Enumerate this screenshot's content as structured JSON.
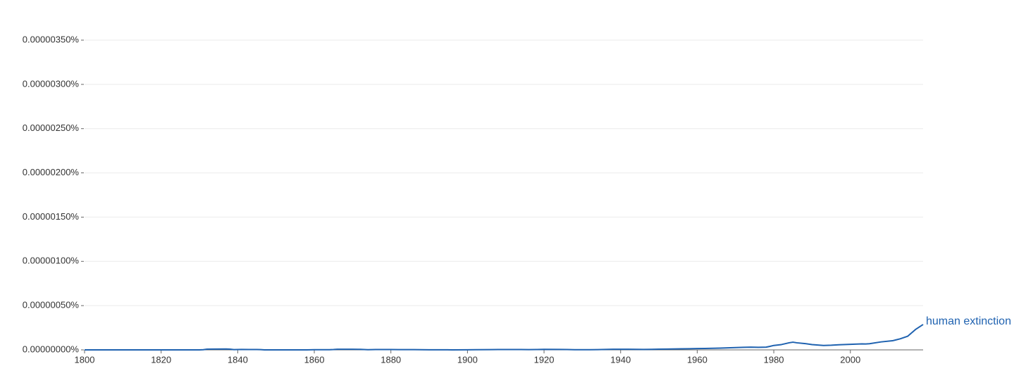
{
  "chart_data": {
    "type": "line",
    "x": [
      1800,
      1810,
      1820,
      1830,
      1831,
      1832,
      1834,
      1837,
      1838,
      1839,
      1841,
      1843,
      1845,
      1846,
      1847,
      1858,
      1860,
      1864,
      1865,
      1866,
      1870,
      1872,
      1874,
      1876,
      1880,
      1882,
      1886,
      1890,
      1896,
      1900,
      1902,
      1906,
      1908,
      1910,
      1914,
      1916,
      1918,
      1920,
      1924,
      1926,
      1928,
      1932,
      1934,
      1936,
      1938,
      1942,
      1946,
      1948,
      1950,
      1952,
      1956,
      1958,
      1960,
      1962,
      1964,
      1966,
      1970,
      1972,
      1974,
      1976,
      1978,
      1979,
      1980,
      1982,
      1984,
      1985,
      1986,
      1988,
      1990,
      1993,
      1995,
      1997,
      2000,
      2003,
      2004,
      2005,
      2008,
      2011,
      2013,
      2015,
      2017,
      2019
    ],
    "series": [
      {
        "name": "human extinction",
        "color": "#1f62b0",
        "values": [
          0,
          0,
          0,
          0,
          2e-09,
          8e-09,
          9e-09,
          1e-08,
          8e-09,
          3e-09,
          5e-09,
          4e-09,
          4e-09,
          3e-09,
          0,
          0,
          2e-09,
          2e-09,
          4e-09,
          7e-09,
          7e-09,
          6e-09,
          2e-09,
          4e-09,
          4e-09,
          3e-09,
          3e-09,
          1e-09,
          5e-10,
          1e-09,
          2e-09,
          3e-09,
          4e-09,
          4e-09,
          4e-09,
          3e-09,
          4e-09,
          6e-09,
          5e-09,
          4e-09,
          2e-09,
          2e-09,
          3e-09,
          5e-09,
          7e-09,
          7e-09,
          5e-09,
          6e-09,
          8e-09,
          9e-09,
          1.2e-08,
          1.3e-08,
          1.5e-08,
          1.6e-08,
          1.8e-08,
          2e-08,
          2.6e-08,
          2.9e-08,
          3.1e-08,
          2.9e-08,
          3.1e-08,
          4e-08,
          5e-08,
          6e-08,
          8e-08,
          8.7e-08,
          8e-08,
          7.2e-08,
          6e-08,
          5e-08,
          5.3e-08,
          5.8e-08,
          6.3e-08,
          6.8e-08,
          6.7e-08,
          7e-08,
          9e-08,
          1.03e-07,
          1.25e-07,
          1.55e-07,
          2.3e-07,
          2.87e-07
        ]
      }
    ],
    "xlim": [
      1800,
      2019
    ],
    "xticks": [
      1800,
      1820,
      1840,
      1860,
      1880,
      1900,
      1920,
      1940,
      1960,
      1980,
      2000
    ],
    "ylim": [
      0,
      3.5e-06
    ],
    "yticks": [
      {
        "value": 0,
        "label": "0.00000000%"
      },
      {
        "value": 5e-07,
        "label": "0.00000050%"
      },
      {
        "value": 1e-06,
        "label": "0.00000100%"
      },
      {
        "value": 1.5e-06,
        "label": "0.00000150%"
      },
      {
        "value": 2e-06,
        "label": "0.00000200%"
      },
      {
        "value": 2.5e-06,
        "label": "0.00000250%"
      },
      {
        "value": 3e-06,
        "label": "0.00000300%"
      },
      {
        "value": 3.5e-06,
        "label": "0.00000350%"
      }
    ],
    "grid": true
  }
}
